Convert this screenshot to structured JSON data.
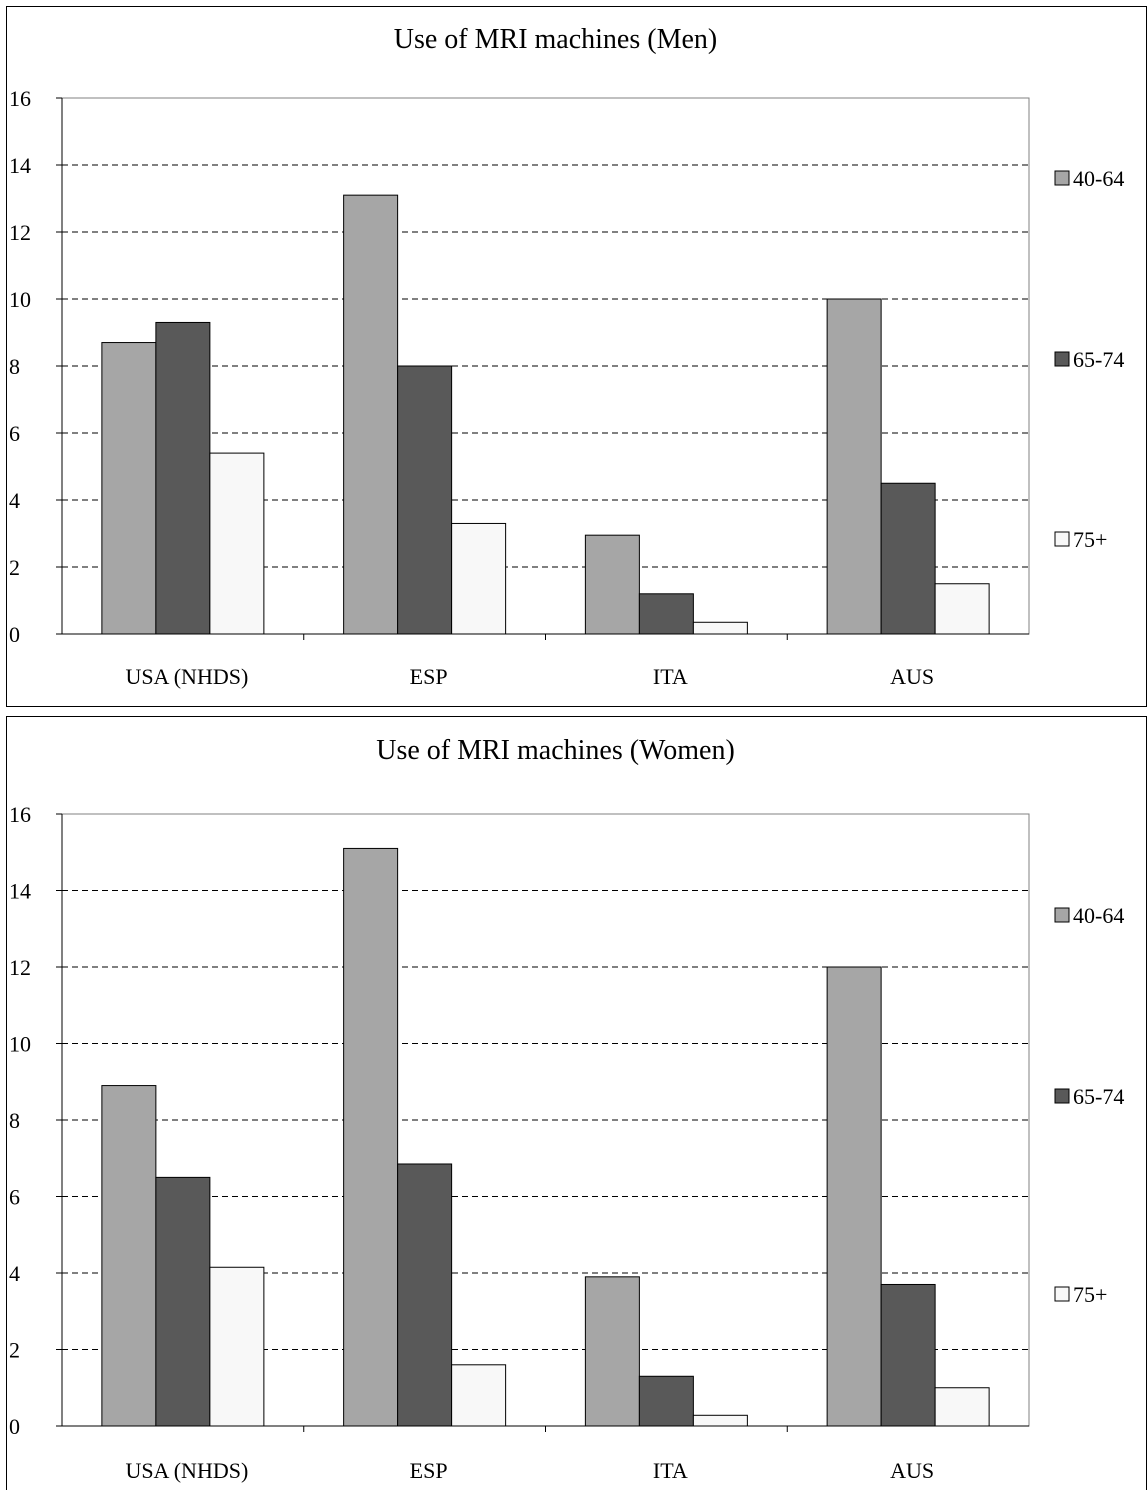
{
  "charts": [
    {
      "title": "Use of MRI machines (Men)",
      "chart_data": {
        "type": "bar",
        "title": "Use of MRI machines (Men)",
        "categories": [
          "USA (NHDS)",
          "ESP",
          "ITA",
          "AUS"
        ],
        "series": [
          {
            "name": "40-64",
            "values": [
              8.7,
              13.1,
              2.95,
              10.0
            ]
          },
          {
            "name": "65-74",
            "values": [
              9.3,
              8.0,
              1.2,
              4.5
            ]
          },
          {
            "name": "75+",
            "values": [
              5.4,
              3.3,
              0.35,
              1.5
            ]
          }
        ],
        "ylim": [
          0,
          16
        ],
        "yticks": [
          0,
          2,
          4,
          6,
          8,
          10,
          12,
          14,
          16
        ],
        "grid": "horizontal dashed",
        "legend_position": "right"
      }
    },
    {
      "title": "Use of MRI machines (Women)",
      "chart_data": {
        "type": "bar",
        "title": "Use of MRI machines (Women)",
        "categories": [
          "USA (NHDS)",
          "ESP",
          "ITA",
          "AUS"
        ],
        "series": [
          {
            "name": "40-64",
            "values": [
              8.9,
              15.1,
              3.9,
              12.0
            ]
          },
          {
            "name": "65-74",
            "values": [
              6.5,
              6.85,
              1.3,
              3.7
            ]
          },
          {
            "name": "75+",
            "values": [
              4.15,
              1.6,
              0.28,
              1.0
            ]
          }
        ],
        "ylim": [
          0,
          16
        ],
        "yticks": [
          0,
          2,
          4,
          6,
          8,
          10,
          12,
          14,
          16
        ],
        "grid": "horizontal dashed",
        "legend_position": "right"
      }
    }
  ],
  "colors": {
    "40-64": "#a6a6a6",
    "65-74": "#595959",
    "75+": "#f8f8f8"
  }
}
